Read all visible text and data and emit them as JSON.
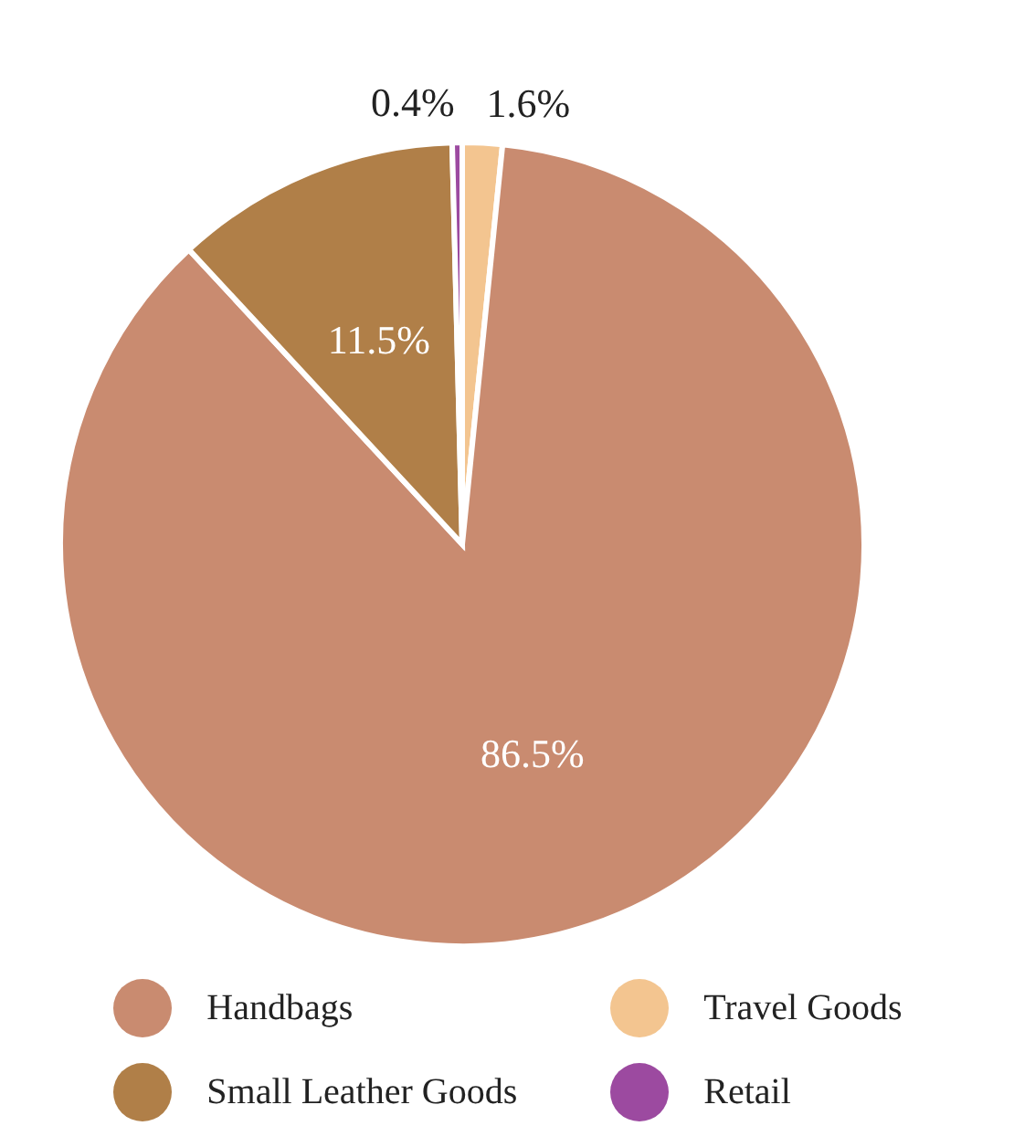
{
  "chart_data": {
    "type": "pie",
    "categories": [
      "Travel Goods",
      "Handbags",
      "Small Leather Goods",
      "Retail"
    ],
    "values": [
      1.6,
      86.5,
      11.5,
      0.4
    ],
    "colors": [
      "#f3c590",
      "#c98b70",
      "#b07f48",
      "#9c4aa0"
    ],
    "value_labels": [
      "1.6%",
      "86.5%",
      "11.5%",
      "0.4%"
    ],
    "legend": "bottom"
  }
}
